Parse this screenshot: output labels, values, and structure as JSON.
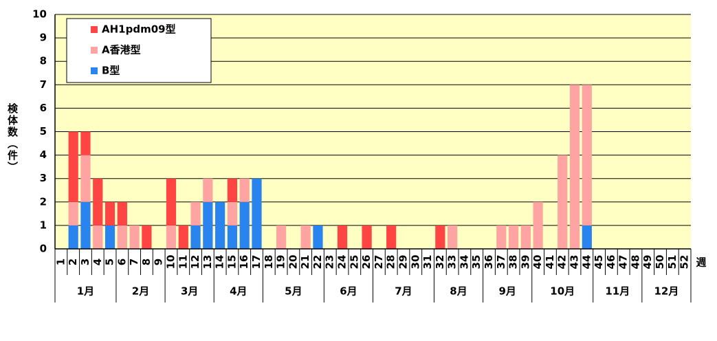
{
  "chart_data": {
    "type": "stacked-bar",
    "y_label": "検体数（件）",
    "x_label": "週",
    "categories": [
      "1",
      "2",
      "3",
      "4",
      "5",
      "6",
      "7",
      "8",
      "9",
      "10",
      "11",
      "12",
      "13",
      "14",
      "15",
      "16",
      "17",
      "18",
      "19",
      "20",
      "21",
      "22",
      "23",
      "24",
      "25",
      "26",
      "27",
      "28",
      "29",
      "30",
      "31",
      "32",
      "33",
      "34",
      "35",
      "36",
      "37",
      "38",
      "39",
      "40",
      "41",
      "42",
      "43",
      "44",
      "45",
      "46",
      "47",
      "48",
      "49",
      "50",
      "51",
      "52"
    ],
    "series": [
      {
        "name": "AH1pdm09型",
        "color": "#ff4444",
        "values": [
          0,
          3,
          1,
          2,
          1,
          1,
          0,
          1,
          0,
          2,
          1,
          0,
          0,
          0,
          1,
          0,
          0,
          0,
          0,
          0,
          0,
          0,
          0,
          1,
          0,
          1,
          0,
          1,
          0,
          0,
          0,
          1,
          0,
          0,
          0,
          0,
          0,
          0,
          0,
          0,
          0,
          0,
          0,
          0,
          0,
          0,
          0,
          0,
          0,
          0,
          0,
          0
        ]
      },
      {
        "name": "A香港型",
        "color": "#ffa3a3",
        "values": [
          0,
          1,
          2,
          1,
          0,
          1,
          1,
          0,
          0,
          1,
          0,
          1,
          1,
          0,
          1,
          1,
          0,
          0,
          1,
          0,
          1,
          0,
          0,
          0,
          0,
          0,
          0,
          0,
          0,
          0,
          0,
          0,
          1,
          0,
          0,
          0,
          1,
          1,
          1,
          2,
          0,
          4,
          7,
          6,
          0,
          0,
          0,
          0,
          0,
          0,
          0,
          0
        ]
      },
      {
        "name": "B型",
        "color": "#2a84f0",
        "values": [
          0,
          1,
          2,
          0,
          1,
          0,
          0,
          0,
          0,
          0,
          0,
          1,
          2,
          2,
          1,
          2,
          3,
          0,
          0,
          0,
          0,
          1,
          0,
          0,
          0,
          0,
          0,
          0,
          0,
          0,
          0,
          0,
          0,
          0,
          0,
          0,
          0,
          0,
          0,
          0,
          0,
          0,
          0,
          1,
          0,
          0,
          0,
          0,
          0,
          0,
          0,
          0
        ]
      }
    ],
    "month_groups": [
      {
        "label": "1月",
        "weeks": 5
      },
      {
        "label": "2月",
        "weeks": 4
      },
      {
        "label": "3月",
        "weeks": 4
      },
      {
        "label": "4月",
        "weeks": 4
      },
      {
        "label": "5月",
        "weeks": 5
      },
      {
        "label": "6月",
        "weeks": 4
      },
      {
        "label": "7月",
        "weeks": 5
      },
      {
        "label": "8月",
        "weeks": 4
      },
      {
        "label": "9月",
        "weeks": 4
      },
      {
        "label": "10月",
        "weeks": 5
      },
      {
        "label": "11月",
        "weeks": 4
      },
      {
        "label": "12月",
        "weeks": 4
      }
    ],
    "ylim": [
      0,
      10
    ],
    "yticks": [
      0,
      1,
      2,
      3,
      4,
      5,
      6,
      7,
      8,
      9,
      10
    ],
    "grid": true,
    "legend": "top-left",
    "plot_color": "#ffffc4"
  }
}
